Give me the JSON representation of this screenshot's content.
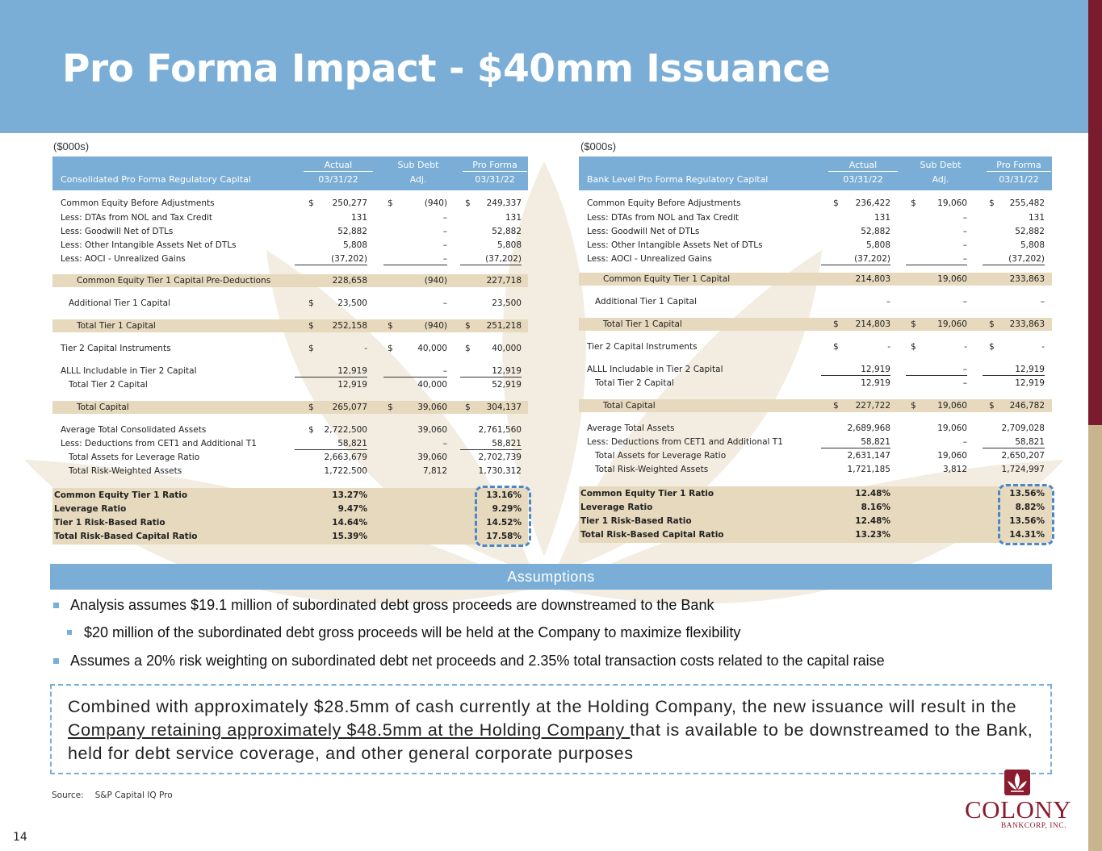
{
  "title": "Pro Forma Impact - $40mm Issuance",
  "colors": {
    "brand_blue": "#7aaed6",
    "brand_maroon": "#7a1c2e",
    "shade": "#e6d9bd",
    "dash": "#4a86c8"
  },
  "left": {
    "units": "($000s)",
    "header": {
      "title": "Consolidated Pro Forma Regulatory Capital",
      "col1_top": "Actual",
      "col1_bot": "03/31/22",
      "col2_top": "Sub Debt",
      "col2_bot": "Adj.",
      "col3_top": "Pro Forma",
      "col3_bot": "03/31/22"
    },
    "rows": {
      "r0": {
        "label": "Common Equity Before Adjustments",
        "c1": "$",
        "v1": "250,277",
        "c2": "$",
        "v2": "(940)",
        "c3": "$",
        "v3": "249,337"
      },
      "r1": {
        "label": "Less: DTAs from NOL and Tax Credit",
        "v1": "131",
        "v2": "–",
        "v3": "131"
      },
      "r2": {
        "label": "Less: Goodwill Net of DTLs",
        "v1": "52,882",
        "v2": "–",
        "v3": "52,882"
      },
      "r3": {
        "label": "Less: Other Intangible Assets Net of DTLs",
        "v1": "5,808",
        "v2": "–",
        "v3": "5,808"
      },
      "r4": {
        "label": "Less: AOCI - Unrealized Gains",
        "v1": "(37,202)",
        "v2": "–",
        "v3": "(37,202)"
      },
      "r5": {
        "label": "Common Equity Tier 1 Capital Pre-Deductions",
        "v1": "228,658",
        "v2": "(940)",
        "v3": "227,718"
      },
      "r6": {
        "label": "Additional Tier 1 Capital",
        "c1": "$",
        "v1": "23,500",
        "v2": "–",
        "v3": "23,500"
      },
      "r7": {
        "label": "Total Tier 1 Capital",
        "c1": "$",
        "v1": "252,158",
        "c2": "$",
        "v2": "(940)",
        "c3": "$",
        "v3": "251,218"
      },
      "r8": {
        "label": "Tier 2 Capital Instruments",
        "c1": "$",
        "v1": "-",
        "c2": "$",
        "v2": "40,000",
        "c3": "$",
        "v3": "40,000"
      },
      "r9": {
        "label": "ALLL Includable in Tier 2 Capital",
        "v1": "12,919",
        "v2": "–",
        "v3": "12,919"
      },
      "r10": {
        "label": "Total Tier 2 Capital",
        "v1": "12,919",
        "v2": "40,000",
        "v3": "52,919"
      },
      "r11": {
        "label": "Total Capital",
        "c1": "$",
        "v1": "265,077",
        "c2": "$",
        "v2": "39,060",
        "c3": "$",
        "v3": "304,137"
      },
      "r12": {
        "label": "Average Total Consolidated Assets",
        "c1": "$",
        "v1": "2,722,500",
        "v2": "39,060",
        "v3": "2,761,560"
      },
      "r13": {
        "label": "Less: Deductions from CET1 and Additional T1",
        "v1": "58,821",
        "v2": "–",
        "v3": "58,821"
      },
      "r14": {
        "label": "Total Assets for Leverage Ratio",
        "v1": "2,663,679",
        "v2": "39,060",
        "v3": "2,702,739"
      },
      "r15": {
        "label": "Total Risk-Weighted Assets",
        "v1": "1,722,500",
        "v2": "7,812",
        "v3": "1,730,312"
      }
    },
    "ratios": [
      {
        "label": "Common Equity Tier 1 Ratio",
        "actual": "13.27%",
        "pro_forma": "13.16%"
      },
      {
        "label": "Leverage Ratio",
        "actual": "9.47%",
        "pro_forma": "9.29%"
      },
      {
        "label": "Tier 1 Risk-Based Ratio",
        "actual": "14.64%",
        "pro_forma": "14.52%"
      },
      {
        "label": "Total Risk-Based Capital Ratio",
        "actual": "15.39%",
        "pro_forma": "17.58%"
      }
    ]
  },
  "right": {
    "units": "($000s)",
    "header": {
      "title": "Bank Level Pro Forma Regulatory Capital",
      "col1_top": "Actual",
      "col1_bot": "03/31/22",
      "col2_top": "Sub Debt",
      "col2_bot": "Adj.",
      "col3_top": "Pro Forma",
      "col3_bot": "03/31/22"
    },
    "rows": {
      "r0": {
        "label": "Common Equity Before Adjustments",
        "c1": "$",
        "v1": "236,422",
        "c2": "$",
        "v2": "19,060",
        "c3": "$",
        "v3": "255,482"
      },
      "r1": {
        "label": "Less: DTAs from NOL and Tax Credit",
        "v1": "131",
        "v2": "–",
        "v3": "131"
      },
      "r2": {
        "label": "Less: Goodwill Net of DTLs",
        "v1": "52,882",
        "v2": "–",
        "v3": "52,882"
      },
      "r3": {
        "label": "Less: Other Intangible Assets Net of DTLs",
        "v1": "5,808",
        "v2": "–",
        "v3": "5,808"
      },
      "r4": {
        "label": "Less: AOCI - Unrealized Gains",
        "v1": "(37,202)",
        "v2": "–",
        "v3": "(37,202)"
      },
      "r5": {
        "label": "Common Equity Tier 1 Capital",
        "v1": "214,803",
        "v2": "19,060",
        "v3": "233,863"
      },
      "r6": {
        "label": "Additional Tier 1 Capital",
        "v1": "–",
        "v2": "–",
        "v3": "–"
      },
      "r7": {
        "label": "Total Tier 1 Capital",
        "c1": "$",
        "v1": "214,803",
        "c2": "$",
        "v2": "19,060",
        "c3": "$",
        "v3": "233,863"
      },
      "r8": {
        "label": "Tier 2 Capital Instruments",
        "c1": "$",
        "v1": "-",
        "c2": "$",
        "v2": "-",
        "c3": "$",
        "v3": "-"
      },
      "r9": {
        "label": "ALLL Includable in Tier 2 Capital",
        "v1": "12,919",
        "v2": "–",
        "v3": "12,919"
      },
      "r10": {
        "label": "Total Tier 2 Capital",
        "v1": "12,919",
        "v2": "–",
        "v3": "12,919"
      },
      "r11": {
        "label": "Total Capital",
        "c1": "$",
        "v1": "227,722",
        "c2": "$",
        "v2": "19,060",
        "c3": "$",
        "v3": "246,782"
      },
      "r12": {
        "label": "Average Total Assets",
        "v1": "2,689,968",
        "v2": "19,060",
        "v3": "2,709,028"
      },
      "r13": {
        "label": "Less: Deductions from CET1 and Additional T1",
        "v1": "58,821",
        "v2": "–",
        "v3": "58,821"
      },
      "r14": {
        "label": "Total Assets for Leverage Ratio",
        "v1": "2,631,147",
        "v2": "19,060",
        "v3": "2,650,207"
      },
      "r15": {
        "label": "Total Risk-Weighted Assets",
        "v1": "1,721,185",
        "v2": "3,812",
        "v3": "1,724,997"
      }
    },
    "ratios": [
      {
        "label": "Common Equity Tier 1 Ratio",
        "actual": "12.48%",
        "pro_forma": "13.56%"
      },
      {
        "label": "Leverage Ratio",
        "actual": "8.16%",
        "pro_forma": "8.82%"
      },
      {
        "label": "Tier 1 Risk-Based Ratio",
        "actual": "12.48%",
        "pro_forma": "13.56%"
      },
      {
        "label": "Total Risk-Based Capital Ratio",
        "actual": "13.23%",
        "pro_forma": "14.31%"
      }
    ]
  },
  "assumptions": {
    "title": "Assumptions",
    "bullets": [
      "Analysis assumes $19.1 million of subordinated debt gross proceeds are downstreamed to the Bank",
      "$20 million of the subordinated debt gross proceeds will be held at the Company to maximize flexibility",
      "Assumes a 20% risk weighting on subordinated debt net proceeds and 2.35% total transaction costs related to the capital raise"
    ]
  },
  "callout": {
    "part1": "Combined with approximately $28.5mm of cash currently at the Holding Company, the new issuance will result in the ",
    "underlined": "Company retaining approximately $48.5mm at the Holding Company ",
    "part2": "that is available to be downstreamed to the Bank, held for debt service coverage, and other general corporate purposes"
  },
  "source": {
    "label": "Source:",
    "value": "S&P Capital IQ Pro"
  },
  "page_number": "14",
  "logo": {
    "name": "COLONY",
    "sub": "BANKCORP, INC."
  }
}
